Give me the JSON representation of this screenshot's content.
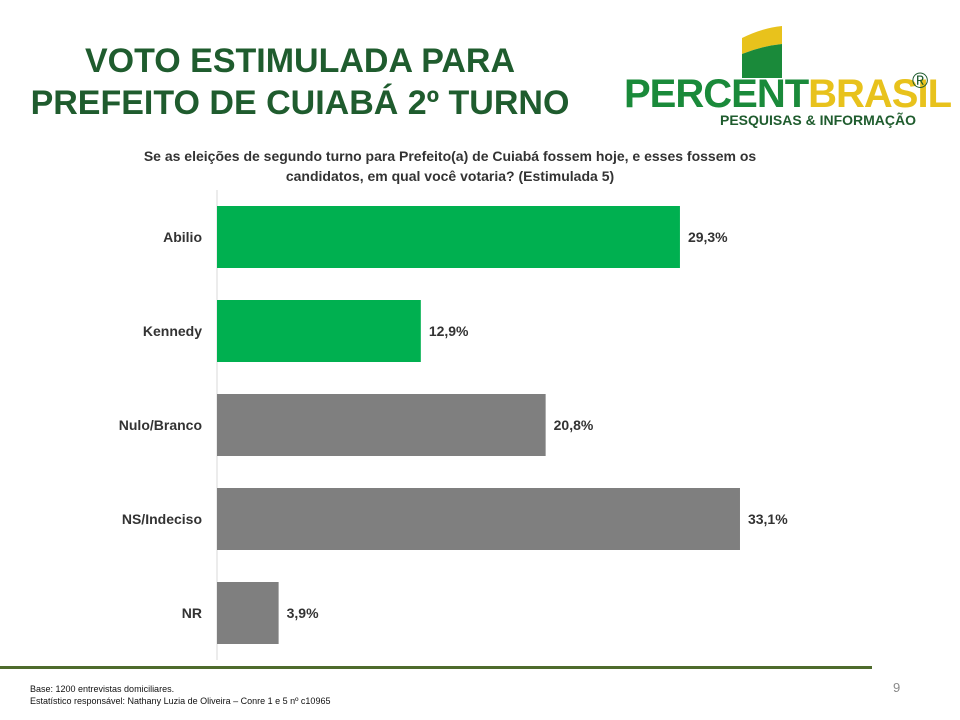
{
  "title": {
    "line1": "VOTO ESTIMULADA PARA",
    "line2": "PREFEITO DE  CUIABÁ 2º TURNO"
  },
  "logo": {
    "name_part1": "PERCENT",
    "name_part2": "BRASIL",
    "registered": "®",
    "tagline": "PESQUISAS & INFORMAÇÃO",
    "colors": {
      "green": "#1a8a3a",
      "yellow": "#e8c21c",
      "dark_green": "#1f5c2e"
    }
  },
  "question": {
    "line1": "Se as eleições de segundo turno para Prefeito(a) de Cuiabá fossem hoje, e esses fossem os",
    "line2": "candidatos, em qual você votaria? (Estimulada 5)"
  },
  "chart_data": {
    "type": "bar",
    "orientation": "horizontal",
    "categories": [
      "Abilio",
      "Kennedy",
      "Nulo/Branco",
      "NS/Indeciso",
      "NR"
    ],
    "values": [
      29.3,
      12.9,
      20.8,
      33.1,
      3.9
    ],
    "value_labels": [
      "29,3%",
      "12,9%",
      "20,8%",
      "33,1%",
      "3,9%"
    ],
    "bar_colors": [
      "#00b050",
      "#00b050",
      "#7f7f7f",
      "#7f7f7f",
      "#7f7f7f"
    ],
    "xlim": [
      0,
      40
    ],
    "grid": false,
    "legend": "none"
  },
  "footer": {
    "base": "Base: 1200 entrevistas domiciliares.",
    "statistician": "Estatístico responsável: Nathany Luzia de Oliveira – Conre 1 e 5 nº c10965"
  },
  "page_number": "9"
}
